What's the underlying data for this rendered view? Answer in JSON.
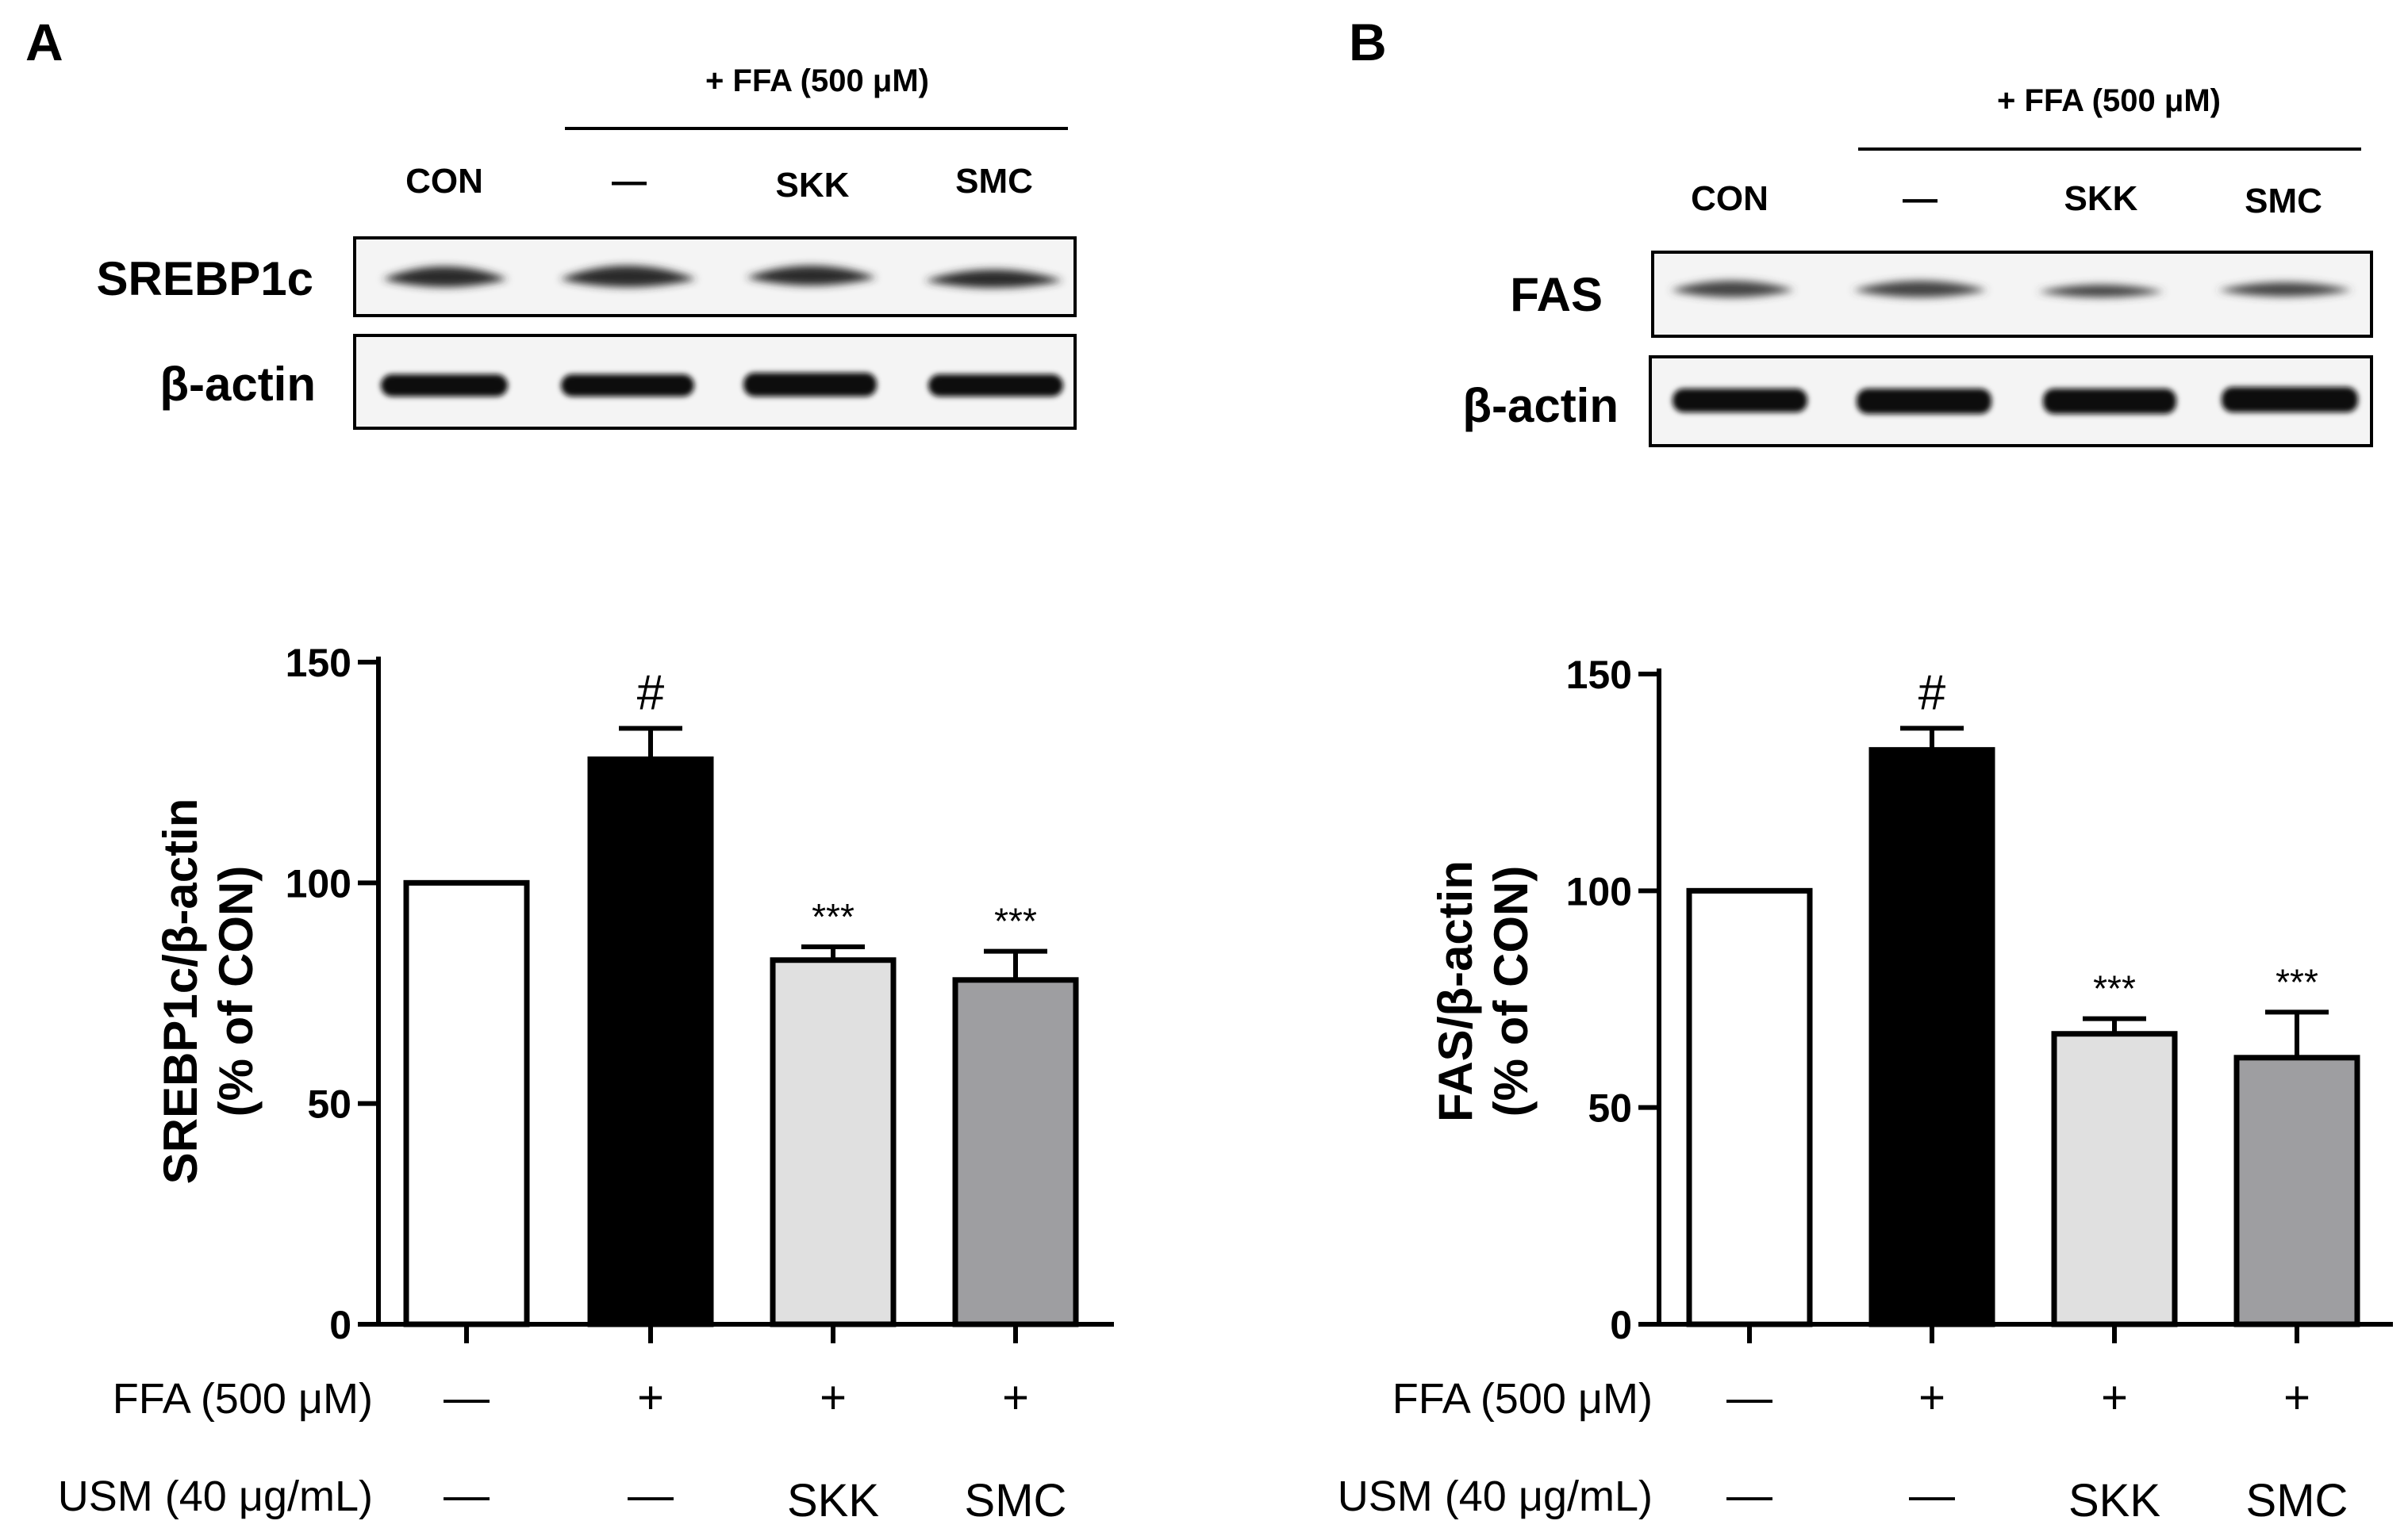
{
  "blot_header": "+ FFA (500 μM)",
  "lanes": [
    "CON",
    "—",
    "SKK",
    "SMC"
  ],
  "conditions": {
    "ffa_label": "FFA (500 μM)",
    "usm_label": "USM (40 μg/mL)",
    "ffa_values": [
      "—",
      "+",
      "+",
      "+"
    ],
    "usm_values": [
      "—",
      "—",
      "SKK",
      "SMC"
    ]
  },
  "panels": [
    {
      "letter": "A",
      "blot_rows": [
        "SREBP1c",
        "β-actin"
      ],
      "ylabel_line1": "SREBP1c/β-actin",
      "ylabel_line2": "(% of CON)"
    },
    {
      "letter": "B",
      "blot_rows": [
        "FAS",
        "β-actin"
      ],
      "ylabel_line1": "FAS/β-actin",
      "ylabel_line2": "(% of CON)"
    }
  ],
  "chart_data": [
    {
      "type": "bar",
      "categories": [
        "CON",
        "FFA",
        "FFA + SKK",
        "FFA + SMC"
      ],
      "values": [
        100,
        128,
        82.5,
        78
      ],
      "errors": [
        0,
        7,
        3,
        6.5
      ],
      "significance": [
        "",
        "#",
        "***",
        "***"
      ],
      "bar_colors": [
        "#ffffff",
        "#000000",
        "#e0e0e0",
        "#9e9ea1"
      ],
      "ylim": [
        0,
        150
      ],
      "yticks": [
        0,
        50,
        100,
        150
      ],
      "ylabel": "SREBP1c/β-actin (% of CON)",
      "xlabel": ""
    },
    {
      "type": "bar",
      "categories": [
        "CON",
        "FFA",
        "FFA + SKK",
        "FFA + SMC"
      ],
      "values": [
        100,
        132.5,
        67,
        61.5
      ],
      "errors": [
        0,
        5,
        3.5,
        10.5
      ],
      "significance": [
        "",
        "#",
        "***",
        "***"
      ],
      "bar_colors": [
        "#ffffff",
        "#000000",
        "#e0e0e0",
        "#9e9ea1"
      ],
      "ylim": [
        0,
        150
      ],
      "yticks": [
        0,
        50,
        100,
        150
      ],
      "ylabel": "FAS/β-actin (% of CON)",
      "xlabel": ""
    }
  ]
}
